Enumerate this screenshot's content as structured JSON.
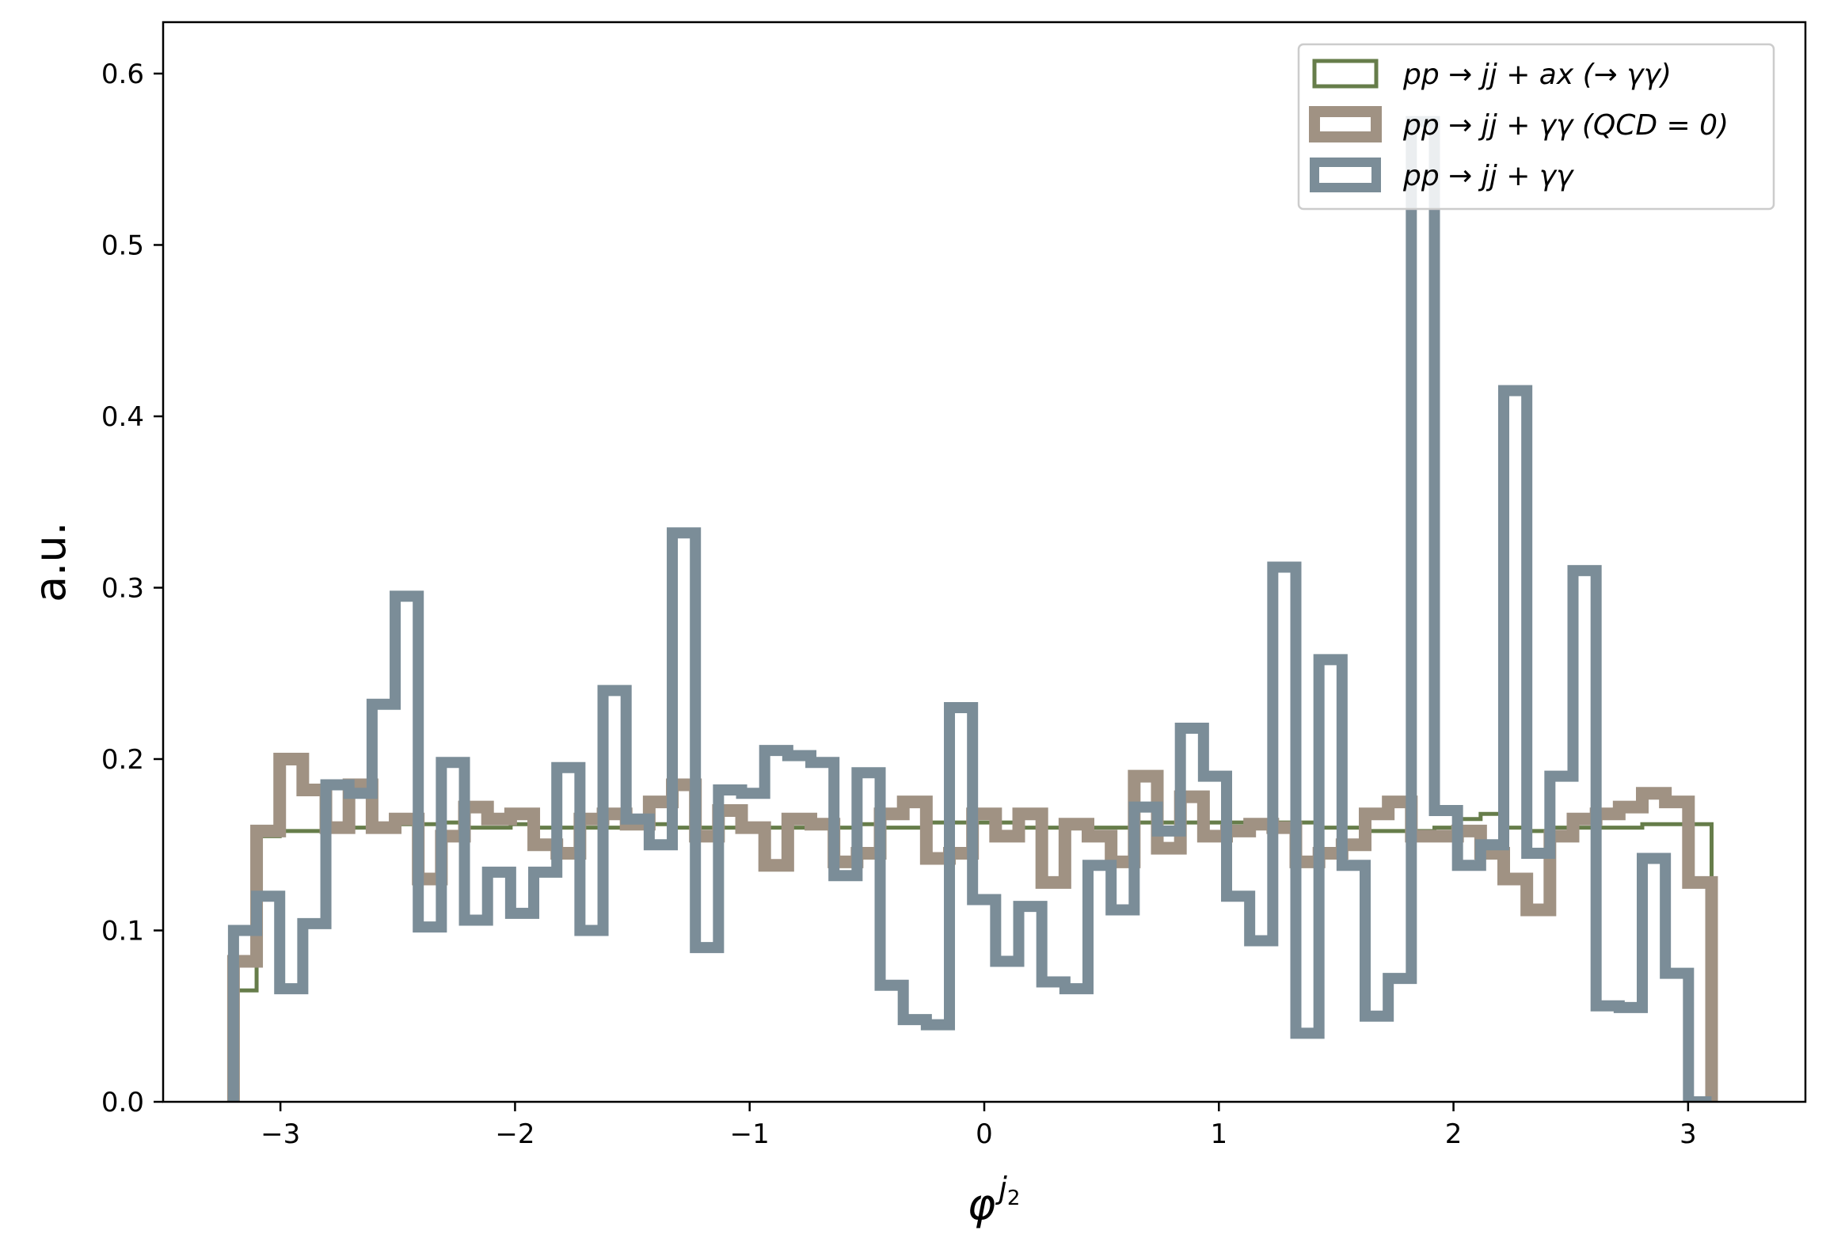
{
  "chart_data": {
    "type": "histogram",
    "xlabel": "φ",
    "xlabel_superscript": "j",
    "xlabel_superscript_sub": "2",
    "ylabel": "a.u.",
    "xlim": [
      -3.5,
      3.5
    ],
    "ylim": [
      0,
      0.63
    ],
    "xticks": [
      -3,
      -2,
      -1,
      0,
      1,
      2,
      3
    ],
    "yticks": [
      0.0,
      0.1,
      0.2,
      0.3,
      0.4,
      0.5,
      0.6
    ],
    "xtick_labels": [
      "−3",
      "−2",
      "−1",
      "0",
      "1",
      "2",
      "3"
    ],
    "ytick_labels": [
      "0.0",
      "0.1",
      "0.2",
      "0.3",
      "0.4",
      "0.5",
      "0.6"
    ],
    "grid": false,
    "legend_position": "top-right",
    "bin_range": [
      -3.2,
      3.1
    ],
    "bin_count": 64,
    "series": [
      {
        "name": "pp → jj + ax (→ γγ)",
        "color": "#667d4a",
        "values": [
          0.065,
          0.155,
          0.158,
          0.158,
          0.16,
          0.16,
          0.162,
          0.162,
          0.162,
          0.163,
          0.16,
          0.16,
          0.162,
          0.16,
          0.16,
          0.16,
          0.16,
          0.16,
          0.162,
          0.16,
          0.16,
          0.16,
          0.16,
          0.16,
          0.16,
          0.162,
          0.16,
          0.162,
          0.16,
          0.16,
          0.163,
          0.163,
          0.163,
          0.163,
          0.16,
          0.16,
          0.16,
          0.16,
          0.16,
          0.163,
          0.163,
          0.163,
          0.163,
          0.163,
          0.163,
          0.163,
          0.163,
          0.16,
          0.16,
          0.158,
          0.158,
          0.158,
          0.16,
          0.165,
          0.168,
          0.16,
          0.158,
          0.16,
          0.16,
          0.16,
          0.16,
          0.162,
          0.162,
          0.162
        ]
      },
      {
        "name": "pp → jj + γγ (QCD = 0)",
        "color": "#a09283",
        "values": [
          0.082,
          0.158,
          0.2,
          0.182,
          0.16,
          0.185,
          0.16,
          0.165,
          0.13,
          0.155,
          0.172,
          0.165,
          0.168,
          0.15,
          0.145,
          0.165,
          0.168,
          0.162,
          0.175,
          0.185,
          0.155,
          0.17,
          0.16,
          0.138,
          0.165,
          0.162,
          0.14,
          0.145,
          0.168,
          0.175,
          0.142,
          0.145,
          0.168,
          0.155,
          0.168,
          0.128,
          0.162,
          0.155,
          0.14,
          0.19,
          0.148,
          0.178,
          0.155,
          0.158,
          0.162,
          0.16,
          0.14,
          0.145,
          0.15,
          0.168,
          0.175,
          0.155,
          0.155,
          0.158,
          0.145,
          0.13,
          0.112,
          0.155,
          0.165,
          0.168,
          0.172,
          0.18,
          0.175,
          0.128
        ]
      },
      {
        "name": "pp → jj + γγ",
        "color": "#7b8d98",
        "values": [
          0.1,
          0.12,
          0.066,
          0.104,
          0.185,
          0.18,
          0.232,
          0.295,
          0.102,
          0.198,
          0.106,
          0.134,
          0.11,
          0.134,
          0.195,
          0.1,
          0.24,
          0.165,
          0.15,
          0.332,
          0.09,
          0.182,
          0.18,
          0.205,
          0.202,
          0.198,
          0.132,
          0.192,
          0.068,
          0.048,
          0.045,
          0.23,
          0.118,
          0.082,
          0.114,
          0.07,
          0.066,
          0.138,
          0.112,
          0.172,
          0.158,
          0.218,
          0.19,
          0.12,
          0.094,
          0.312,
          0.04,
          0.258,
          0.138,
          0.05,
          0.072,
          0.572,
          0.17,
          0.138,
          0.15,
          0.415,
          0.145,
          0.19,
          0.31,
          0.056,
          0.055,
          0.142,
          0.075,
          0.0
        ]
      }
    ]
  }
}
